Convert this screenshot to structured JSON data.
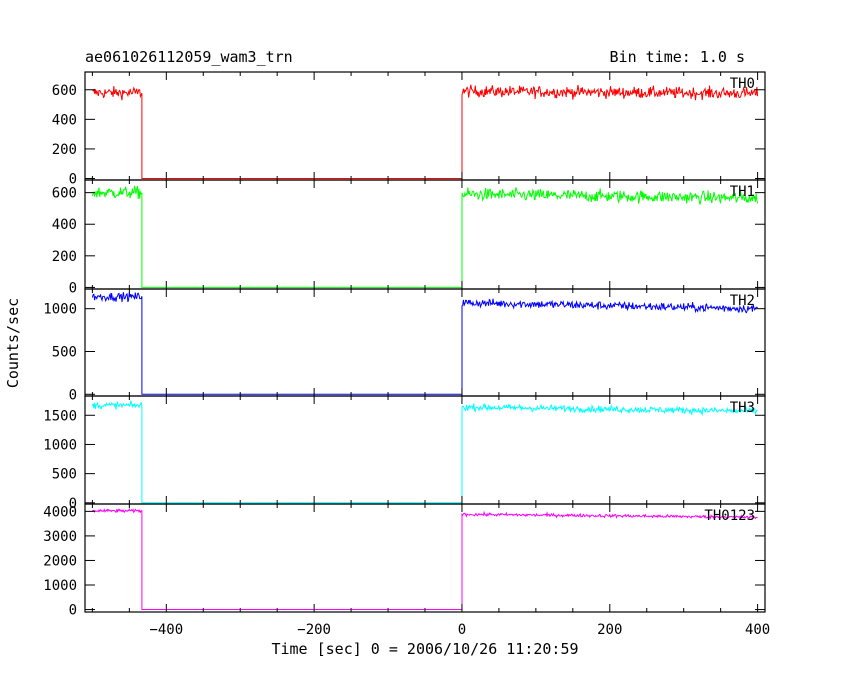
{
  "chart_data": {
    "type": "line",
    "title": "ae061026112059_wam3_trn",
    "bin_time": "Bin time: 1.0 s",
    "xlabel": "Time [sec] 0 = 2006/10/26 11:20:59",
    "ylabel": "Counts/sec",
    "xlim": [
      -510,
      410
    ],
    "xticks": [
      -400,
      -200,
      0,
      200,
      400
    ],
    "xtick_labels": [
      "−400",
      "−200",
      "0",
      "200",
      "400"
    ],
    "gap": {
      "start": -433,
      "end": 0
    },
    "panels": [
      {
        "name": "TH0",
        "color": "#ff0000",
        "ylim": [
          -10,
          720
        ],
        "yticks": [
          0,
          200,
          400,
          600
        ],
        "before_mean": 580,
        "after_start": 590,
        "after_end": 575,
        "noise": 28,
        "gap_level": 0
      },
      {
        "name": "TH1",
        "color": "#00ff00",
        "ylim": [
          -10,
          680
        ],
        "yticks": [
          0,
          200,
          400,
          600
        ],
        "before_mean": 600,
        "after_start": 590,
        "after_end": 565,
        "noise": 28,
        "gap_level": 0
      },
      {
        "name": "TH2",
        "color": "#0000ff",
        "ylim": [
          -20,
          1230
        ],
        "yticks": [
          0,
          500,
          1000
        ],
        "before_mean": 1140,
        "after_start": 1070,
        "after_end": 1000,
        "noise": 35,
        "gap_level": 0
      },
      {
        "name": "TH3",
        "color": "#00ffff",
        "ylim": [
          -20,
          1830
        ],
        "yticks": [
          0,
          500,
          1000,
          1500
        ],
        "before_mean": 1670,
        "after_start": 1640,
        "after_end": 1570,
        "noise": 40,
        "gap_level": 0
      },
      {
        "name": "TH0123",
        "color": "#ff00ff",
        "ylim": [
          -100,
          4300
        ],
        "yticks": [
          0,
          1000,
          2000,
          3000,
          4000
        ],
        "before_mean": 4020,
        "after_start": 3880,
        "after_end": 3760,
        "noise": 45,
        "gap_level": 0
      }
    ]
  }
}
